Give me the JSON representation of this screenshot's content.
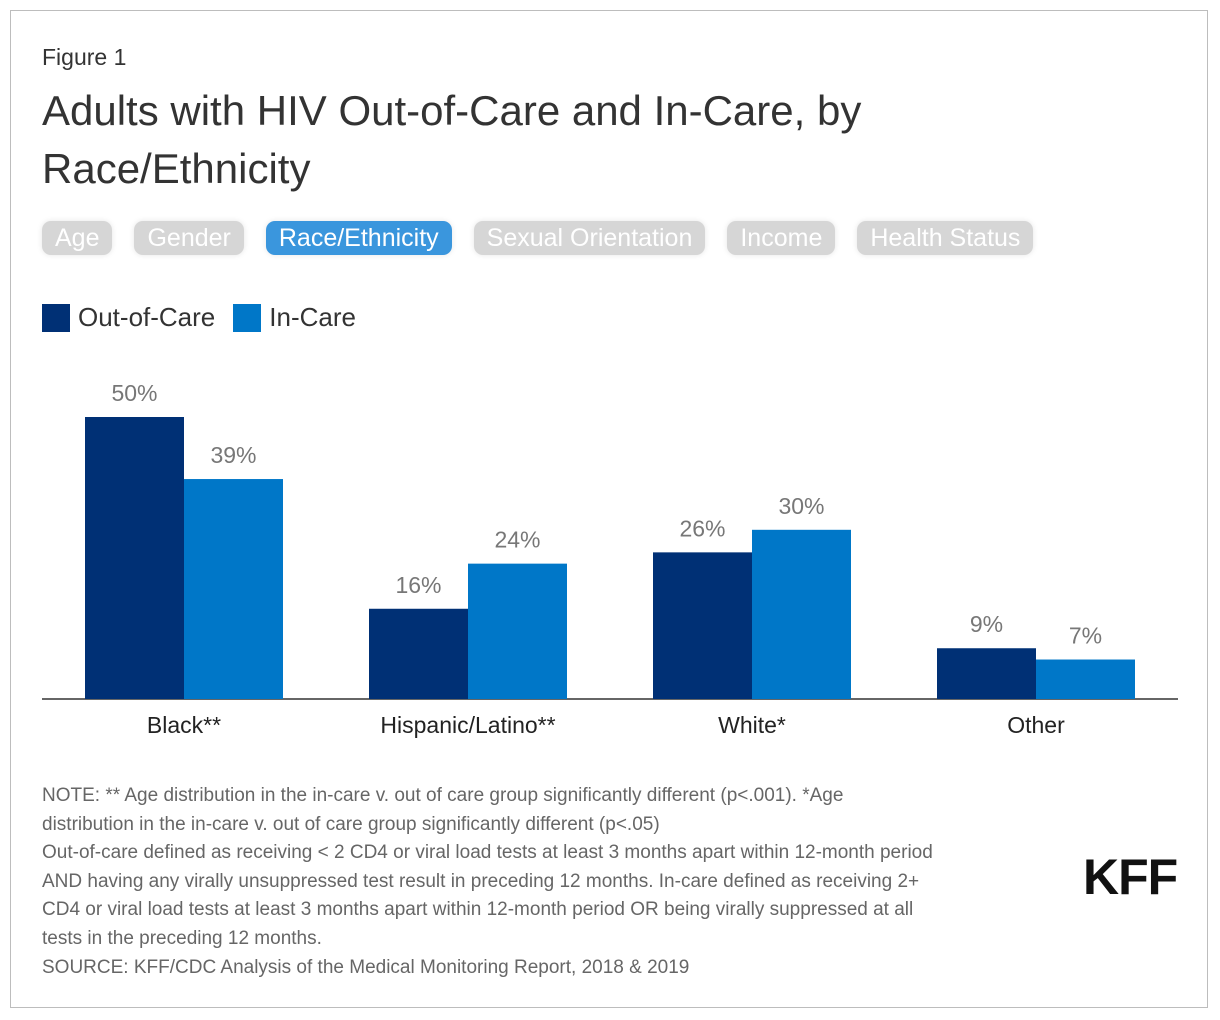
{
  "figure_label": "Figure 1",
  "tabs": [
    "Age",
    "Gender",
    "Race/Ethnicity",
    "Sexual Orientation",
    "Income",
    "Health Status"
  ],
  "active_tab_index": 2,
  "chart_data": {
    "type": "bar",
    "title": "Adults with HIV Out-of-Care and In-Care, by Race/Ethnicity",
    "categories": [
      "Black**",
      "Hispanic/Latino**",
      "White*",
      "Other"
    ],
    "series": [
      {
        "name": "Out-of-Care",
        "color": "#003075",
        "values": [
          50,
          16,
          26,
          9
        ],
        "value_labels": [
          "50%",
          "16%",
          "26%",
          "9%"
        ]
      },
      {
        "name": "In-Care",
        "color": "#0077c8",
        "values": [
          39,
          24,
          30,
          7
        ],
        "value_labels": [
          "39%",
          "24%",
          "30%",
          "7%"
        ]
      }
    ],
    "legend": "top-left"
  },
  "notes": [
    "NOTE: ** Age distribution in the in-care v. out of care group significantly different (p<.001). *Age",
    "distribution in the in-care v. out of care group significantly different (p<.05)",
    "Out-of-care defined as receiving < 2 CD4 or viral load tests at least 3 months apart within 12-month period",
    "AND having any virally unsuppressed test result in preceding 12 months. In-care defined as receiving 2+",
    "CD4 or viral load tests at least 3 months apart within 12-month period OR being virally suppressed at all",
    "tests in the preceding 12 months.",
    "SOURCE: KFF/CDC Analysis of the Medical Monitoring Report, 2018 & 2019"
  ],
  "logo": "KFF"
}
